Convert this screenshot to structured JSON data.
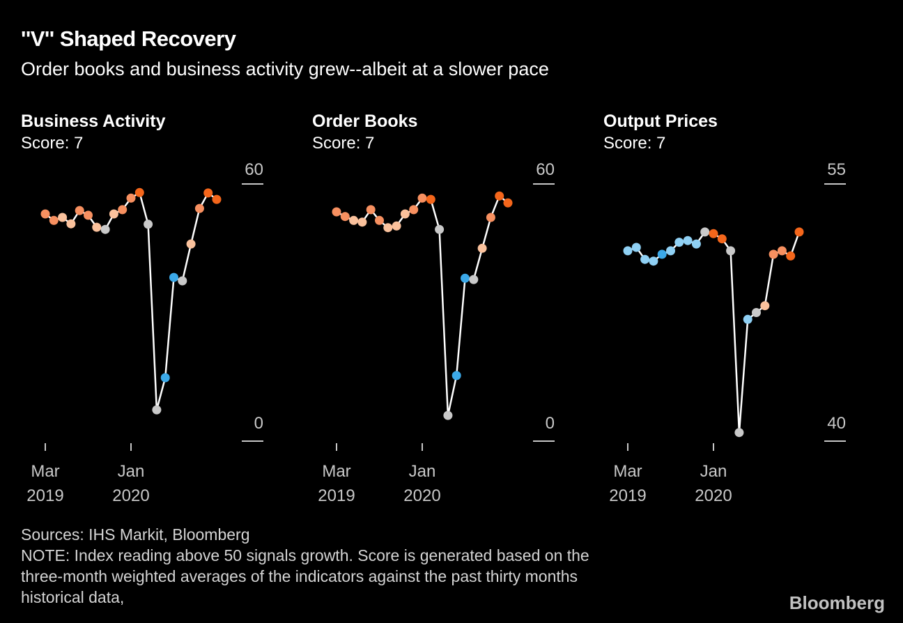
{
  "title": "''V'' Shaped Recovery",
  "subtitle": "Order books and business activity grew--albeit at a slower pace",
  "footer": {
    "sources": "Sources: IHS Markit, Bloomberg",
    "note_lines": [
      "NOTE: Index reading above 50 signals growth. Score is generated based on the",
      "three-month weighted averages of the indicators against the past thirty months",
      "historical data,"
    ]
  },
  "logo_text": "Bloomberg",
  "colors": {
    "background": "#000000",
    "line": "#ffffff",
    "axis_text": "#c8c8c8",
    "orange_strong": "#f4661b",
    "orange": "#f79060",
    "orange_pale": "#fac19c",
    "gray": "#c9c9c9",
    "blue": "#3ba9e9",
    "blue_light": "#8fd0f4"
  },
  "chart_data": [
    {
      "type": "scatter-line",
      "title": "Business Activity",
      "score_label": "Score: 7",
      "ylim": [
        0,
        60
      ],
      "yticks": [
        "60",
        "0"
      ],
      "x_ticks": [
        {
          "index": 0,
          "month": "Mar",
          "year": "2019"
        },
        {
          "index": 10,
          "month": "Jan",
          "year": "2020"
        }
      ],
      "x": [
        "Mar 2019",
        "Apr 2019",
        "May 2019",
        "Jun 2019",
        "Jul 2019",
        "Aug 2019",
        "Sep 2019",
        "Oct 2019",
        "Nov 2019",
        "Dec 2019",
        "Jan 2020",
        "Feb 2020",
        "Mar 2020",
        "Apr 2020",
        "May 2020",
        "Jun 2020",
        "Jul 2020",
        "Aug 2020",
        "Sep 2020",
        "Oct 2020",
        "Nov 2020"
      ],
      "values": [
        53.0,
        51.5,
        52.2,
        50.7,
        53.8,
        52.7,
        49.9,
        49.4,
        53.0,
        54.0,
        56.7,
        58.0,
        50.6,
        7.3,
        14.8,
        38.2,
        37.4,
        46.0,
        54.3,
        57.9,
        56.4
      ],
      "point_colors": [
        "orange",
        "orange",
        "orange_pale",
        "orange_pale",
        "orange",
        "orange",
        "orange_pale",
        "gray",
        "orange_pale",
        "orange",
        "orange",
        "orange_strong",
        "gray",
        "gray",
        "blue",
        "blue",
        "gray",
        "orange_pale",
        "orange",
        "orange_strong",
        "orange_strong"
      ]
    },
    {
      "type": "scatter-line",
      "title": "Order Books",
      "score_label": "Score: 7",
      "ylim": [
        0,
        60
      ],
      "yticks": [
        "60",
        "0"
      ],
      "x_ticks": [
        {
          "index": 0,
          "month": "Mar",
          "year": "2019"
        },
        {
          "index": 10,
          "month": "Jan",
          "year": "2020"
        }
      ],
      "x": [
        "Mar 2019",
        "Apr 2019",
        "May 2019",
        "Jun 2019",
        "Jul 2019",
        "Aug 2019",
        "Sep 2019",
        "Oct 2019",
        "Nov 2019",
        "Dec 2019",
        "Jan 2020",
        "Feb 2020",
        "Mar 2020",
        "Apr 2020",
        "May 2020",
        "Jun 2020",
        "Jul 2020",
        "Aug 2020",
        "Sep 2020",
        "Oct 2020",
        "Nov 2020"
      ],
      "values": [
        53.5,
        52.4,
        51.5,
        51.1,
        54.0,
        51.5,
        49.8,
        50.2,
        53.0,
        54.0,
        56.7,
        56.4,
        49.4,
        6.0,
        15.3,
        38.0,
        37.7,
        45.0,
        52.2,
        57.2,
        55.6
      ],
      "point_colors": [
        "orange",
        "orange",
        "orange_pale",
        "orange_pale",
        "orange",
        "orange",
        "orange_pale",
        "orange_pale",
        "orange_pale",
        "orange",
        "orange",
        "orange_strong",
        "gray",
        "gray",
        "blue",
        "blue",
        "gray",
        "orange_pale",
        "orange",
        "orange_strong",
        "orange_strong"
      ]
    },
    {
      "type": "scatter-line",
      "title": "Output Prices",
      "score_label": "Score: 7",
      "ylim": [
        40,
        55
      ],
      "yticks": [
        "55",
        "40"
      ],
      "x_ticks": [
        {
          "index": 0,
          "month": "Mar",
          "year": "2019"
        },
        {
          "index": 10,
          "month": "Jan",
          "year": "2020"
        }
      ],
      "x": [
        "Mar 2019",
        "Apr 2019",
        "May 2019",
        "Jun 2019",
        "Jul 2019",
        "Aug 2019",
        "Sep 2019",
        "Oct 2019",
        "Nov 2019",
        "Dec 2019",
        "Jan 2020",
        "Feb 2020",
        "Mar 2020",
        "Apr 2020",
        "May 2020",
        "Jun 2020",
        "Jul 2020",
        "Aug 2020",
        "Sep 2020",
        "Oct 2020",
        "Nov 2020"
      ],
      "values": [
        51.1,
        51.3,
        50.6,
        50.5,
        50.9,
        51.1,
        51.6,
        51.7,
        51.5,
        52.2,
        52.1,
        51.8,
        51.1,
        40.5,
        47.1,
        47.5,
        47.9,
        50.9,
        51.1,
        50.8,
        52.2
      ],
      "point_colors": [
        "blue_light",
        "blue_light",
        "blue_light",
        "blue_light",
        "blue",
        "blue_light",
        "blue_light",
        "blue_light",
        "blue_light",
        "gray",
        "orange_strong",
        "orange_strong",
        "gray",
        "gray",
        "blue_light",
        "gray",
        "orange_pale",
        "orange",
        "orange",
        "orange_strong",
        "orange_strong"
      ]
    }
  ]
}
